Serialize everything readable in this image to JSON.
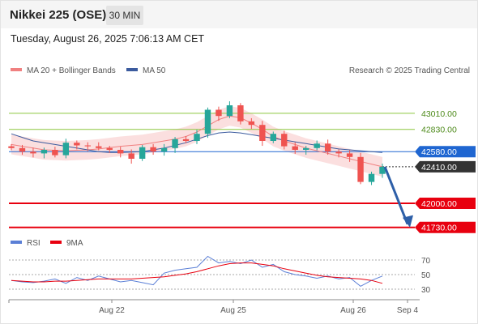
{
  "header": {
    "title": "Nikkei 225 (OSE)",
    "timeframe": "30 MIN"
  },
  "timestamp": "Tuesday, August 26, 2025 7:06:13 AM CET",
  "legend": {
    "ma20_label": "MA 20 + Bollinger Bands",
    "ma50_label": "MA 50",
    "credit": "Research © 2025 Trading Central"
  },
  "rsi_legend": {
    "rsi_label": "RSI",
    "ma_label": "9MA"
  },
  "colors": {
    "up": "#26a69a",
    "down": "#ef5350",
    "ma20": "#f08080",
    "band": "#f8c9c9",
    "ma50": "#3b5b9e",
    "resistance": "#8cc63f",
    "support": "#e8000f",
    "pivot": "#1f66d1",
    "current": "#333333",
    "arrow": "#2d5fa8",
    "rsi": "#5b7fd6",
    "rsi_ma": "#e8000f"
  },
  "chart_data": [
    {
      "type": "candlestick",
      "x_ticks": [
        "Aug 22",
        "Aug 25",
        "Aug 26",
        "Sep 4"
      ],
      "ylim": [
        41600,
        43300
      ],
      "levels": [
        {
          "label": "43010.00",
          "value": 43010,
          "kind": "resistance"
        },
        {
          "label": "42830.00",
          "value": 42830,
          "kind": "resistance"
        },
        {
          "label": "42580.00",
          "value": 42580,
          "kind": "pivot"
        },
        {
          "label": "42410.00",
          "value": 42410,
          "kind": "current"
        },
        {
          "label": "42000.00",
          "value": 42000,
          "kind": "support"
        },
        {
          "label": "41730.00",
          "value": 41730,
          "kind": "support"
        }
      ],
      "projection": {
        "from": 42410,
        "to": 41730
      },
      "series": [
        {
          "name": "MA 20",
          "values": [
            42660,
            42640,
            42620,
            42600,
            42595,
            42590,
            42595,
            42600,
            42610,
            42625,
            42640,
            42650,
            42660,
            42680,
            42700,
            42720,
            42750,
            42800,
            42870,
            42940,
            42980,
            42960,
            42900,
            42830,
            42750,
            42700,
            42660,
            42620,
            42590,
            42560,
            42530,
            42500,
            42470,
            42440,
            42410
          ]
        },
        {
          "name": "MA 50",
          "values": [
            42780,
            42740,
            42700,
            42680,
            42660,
            42640,
            42620,
            42600,
            42580,
            42570,
            42570,
            42575,
            42580,
            42600,
            42620,
            42650,
            42680,
            42720,
            42760,
            42790,
            42800,
            42790,
            42770,
            42750,
            42730,
            42710,
            42690,
            42670,
            42650,
            42630,
            42610,
            42600,
            42590,
            42580,
            42570
          ]
        },
        {
          "name": "Close",
          "values": [
            42620,
            42580,
            42560,
            42600,
            42540,
            42680,
            42650,
            42640,
            42620,
            42600,
            42560,
            42500,
            42630,
            42580,
            42620,
            42720,
            42700,
            42780,
            43050,
            42980,
            43100,
            42920,
            42880,
            42700,
            42780,
            42640,
            42600,
            42620,
            42670,
            42580,
            42560,
            42520,
            42240,
            42330,
            42410
          ]
        }
      ]
    },
    {
      "type": "line",
      "title": "RSI",
      "yticks": [
        70,
        50,
        30
      ],
      "ylim": [
        20,
        80
      ],
      "series": [
        {
          "name": "RSI",
          "values": [
            42,
            40,
            39,
            41,
            44,
            38,
            46,
            42,
            48,
            44,
            40,
            42,
            39,
            36,
            52,
            56,
            58,
            60,
            75,
            66,
            68,
            65,
            70,
            60,
            64,
            54,
            50,
            48,
            45,
            48,
            44,
            46,
            34,
            42,
            48
          ]
        },
        {
          "name": "9MA",
          "values": [
            42,
            41,
            40,
            40,
            41,
            41,
            42,
            43,
            44,
            44,
            44,
            44,
            45,
            46,
            47,
            49,
            51,
            54,
            58,
            62,
            65,
            66,
            66,
            64,
            62,
            58,
            55,
            52,
            49,
            47,
            46,
            45,
            44,
            42,
            38
          ]
        }
      ]
    }
  ]
}
